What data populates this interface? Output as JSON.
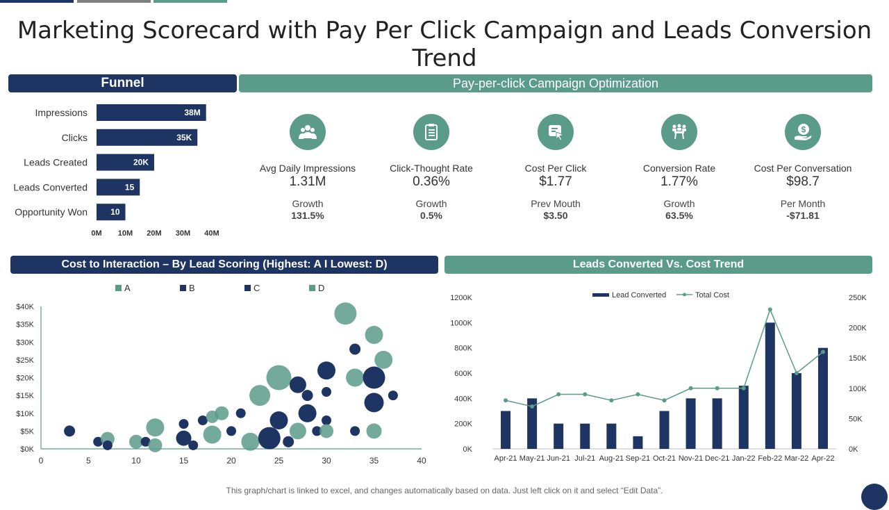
{
  "page": {
    "title": "Marketing Scorecard with Pay Per Click Campaign and Leads Conversion Trend",
    "footnote": "This graph/chart is linked to excel, and changes automatically based on data. Just left click on it and select “Edit Data”."
  },
  "colors": {
    "navy": "#1e3462",
    "teal": "#5a9b8a",
    "gray": "#7f7f7f"
  },
  "funnel": {
    "header": "Funnel"
  },
  "ppc": {
    "header": "Pay-per-click Campaign Optimization",
    "kpis": [
      {
        "icon": "people-icon",
        "label": "Avg Daily Impressions",
        "value": "1.31M",
        "sub_label": "Growth",
        "sub_value": "131.5%"
      },
      {
        "icon": "clipboard-icon",
        "label": "Click-Thought Rate",
        "value": "0.36%",
        "sub_label": "Growth",
        "sub_value": "0.5%"
      },
      {
        "icon": "cursor-card-icon",
        "label": "Cost Per Click",
        "value": "$1.77",
        "sub_label": "Prev Mouth",
        "sub_value": "$3.50"
      },
      {
        "icon": "meeting-icon",
        "label": "Conversion Rate",
        "value": "1.77%",
        "sub_label": "Growth",
        "sub_value": "63.5%"
      },
      {
        "icon": "money-hand-icon",
        "label": "Cost Per Conversation",
        "value": "$98.7",
        "sub_label": "Per Month",
        "sub_value": "-$71.81"
      }
    ]
  },
  "bubble": {
    "header": "Cost to Interaction – By Lead Scoring (Highest: A I Lowest: D)"
  },
  "trend": {
    "header": "Leads Converted Vs. Cost Trend"
  },
  "chart_data": [
    {
      "type": "bar",
      "orientation": "horizontal",
      "title": "Funnel",
      "categories": [
        "Impressions",
        "Clicks",
        "Leads Created",
        "Leads Converted",
        "Opportunity Won"
      ],
      "values": [
        38,
        35,
        20,
        15,
        10
      ],
      "labels": [
        "38M",
        "35K",
        "20K",
        "15",
        "10"
      ],
      "x_ticks": [
        "0M",
        "10M",
        "20M",
        "30M",
        "40M"
      ],
      "xlim": [
        0,
        40
      ]
    },
    {
      "type": "scatter",
      "title": "Cost to Interaction – By Lead Scoring (Highest: A I Lowest: D)",
      "xlim": [
        0,
        40
      ],
      "ylim": [
        0,
        40
      ],
      "x_ticks": [
        "0",
        "5",
        "10",
        "15",
        "20",
        "25",
        "30",
        "35",
        "40"
      ],
      "y_ticks": [
        "$0K",
        "$5K",
        "$10K",
        "$15K",
        "$20K",
        "$25K",
        "$30K",
        "$35K",
        "$40K"
      ],
      "legend": [
        "A",
        "B",
        "C",
        "D"
      ],
      "legend_colors": [
        "#5a9b8a",
        "#1e3462",
        "#1e3462",
        "#5a9b8a"
      ],
      "points": [
        {
          "x": 3,
          "y": 5,
          "r": 8,
          "s": "B"
        },
        {
          "x": 6,
          "y": 2,
          "r": 7,
          "s": "B"
        },
        {
          "x": 7,
          "y": 2.8,
          "r": 10,
          "s": "A"
        },
        {
          "x": 7,
          "y": 1,
          "r": 7,
          "s": "B"
        },
        {
          "x": 10,
          "y": 2,
          "r": 10,
          "s": "A"
        },
        {
          "x": 11,
          "y": 2,
          "r": 7,
          "s": "B"
        },
        {
          "x": 12,
          "y": 6,
          "r": 13,
          "s": "A"
        },
        {
          "x": 12,
          "y": 1,
          "r": 10,
          "s": "A"
        },
        {
          "x": 15,
          "y": 7,
          "r": 7,
          "s": "B"
        },
        {
          "x": 15,
          "y": 3,
          "r": 11,
          "s": "B"
        },
        {
          "x": 16,
          "y": 1,
          "r": 7,
          "s": "B"
        },
        {
          "x": 17,
          "y": 8,
          "r": 7,
          "s": "B"
        },
        {
          "x": 18,
          "y": 9,
          "r": 9,
          "s": "A"
        },
        {
          "x": 18,
          "y": 4,
          "r": 13,
          "s": "A"
        },
        {
          "x": 19,
          "y": 10,
          "r": 10,
          "s": "A"
        },
        {
          "x": 20,
          "y": 5,
          "r": 7,
          "s": "B"
        },
        {
          "x": 21,
          "y": 10,
          "r": 7,
          "s": "B"
        },
        {
          "x": 22,
          "y": 2,
          "r": 13,
          "s": "A"
        },
        {
          "x": 23,
          "y": 15,
          "r": 15,
          "s": "A"
        },
        {
          "x": 24,
          "y": 3,
          "r": 16,
          "s": "B"
        },
        {
          "x": 25,
          "y": 20,
          "r": 18,
          "s": "A"
        },
        {
          "x": 25,
          "y": 8,
          "r": 13,
          "s": "B"
        },
        {
          "x": 26,
          "y": 2,
          "r": 8,
          "s": "B"
        },
        {
          "x": 27,
          "y": 18,
          "r": 12,
          "s": "B"
        },
        {
          "x": 27,
          "y": 5,
          "r": 12,
          "s": "A"
        },
        {
          "x": 28,
          "y": 15,
          "r": 8,
          "s": "B"
        },
        {
          "x": 28,
          "y": 10,
          "r": 13,
          "s": "B"
        },
        {
          "x": 29,
          "y": 5,
          "r": 7,
          "s": "B"
        },
        {
          "x": 30,
          "y": 22,
          "r": 13,
          "s": "B"
        },
        {
          "x": 30,
          "y": 16,
          "r": 7,
          "s": "B"
        },
        {
          "x": 30,
          "y": 8,
          "r": 7,
          "s": "B"
        },
        {
          "x": 30,
          "y": 5,
          "r": 10,
          "s": "A"
        },
        {
          "x": 32,
          "y": 38,
          "r": 16,
          "s": "A"
        },
        {
          "x": 33,
          "y": 28,
          "r": 8,
          "s": "B"
        },
        {
          "x": 33,
          "y": 20,
          "r": 13,
          "s": "A"
        },
        {
          "x": 33,
          "y": 5,
          "r": 7,
          "s": "B"
        },
        {
          "x": 35,
          "y": 32,
          "r": 13,
          "s": "A"
        },
        {
          "x": 35,
          "y": 20,
          "r": 16,
          "s": "B"
        },
        {
          "x": 35,
          "y": 13,
          "r": 14,
          "s": "B"
        },
        {
          "x": 35,
          "y": 5,
          "r": 11,
          "s": "A"
        },
        {
          "x": 36,
          "y": 25,
          "r": 13,
          "s": "A"
        },
        {
          "x": 37,
          "y": 15,
          "r": 7,
          "s": "B"
        }
      ]
    },
    {
      "type": "bar+line",
      "title": "Leads Converted Vs. Cost Trend",
      "categories": [
        "Apr-21",
        "May-21",
        "Jun-21",
        "Jul-21",
        "Aug-21",
        "Sep-21",
        "Oct-21",
        "Nov-21",
        "Dec-21",
        "Jan-22",
        "Feb-22",
        "Mar-22",
        "Apr-22"
      ],
      "series": [
        {
          "name": "Lead Converted",
          "type": "bar",
          "axis": "left",
          "values": [
            300000,
            400000,
            200000,
            200000,
            200000,
            100000,
            300000,
            400000,
            400000,
            500000,
            1000000,
            600000,
            800000
          ]
        },
        {
          "name": "Total Cost",
          "type": "line",
          "axis": "right",
          "values": [
            80000,
            70000,
            90000,
            90000,
            80000,
            90000,
            80000,
            100000,
            100000,
            100000,
            230000,
            125000,
            160000
          ]
        }
      ],
      "y_left_ticks": [
        "0K",
        "200K",
        "400K",
        "600K",
        "800K",
        "1000K",
        "1200K"
      ],
      "y_right_ticks": [
        "0K",
        "50K",
        "100K",
        "150K",
        "200K",
        "250K"
      ],
      "ylim_left": [
        0,
        1200000
      ],
      "ylim_right": [
        0,
        250000
      ]
    }
  ]
}
